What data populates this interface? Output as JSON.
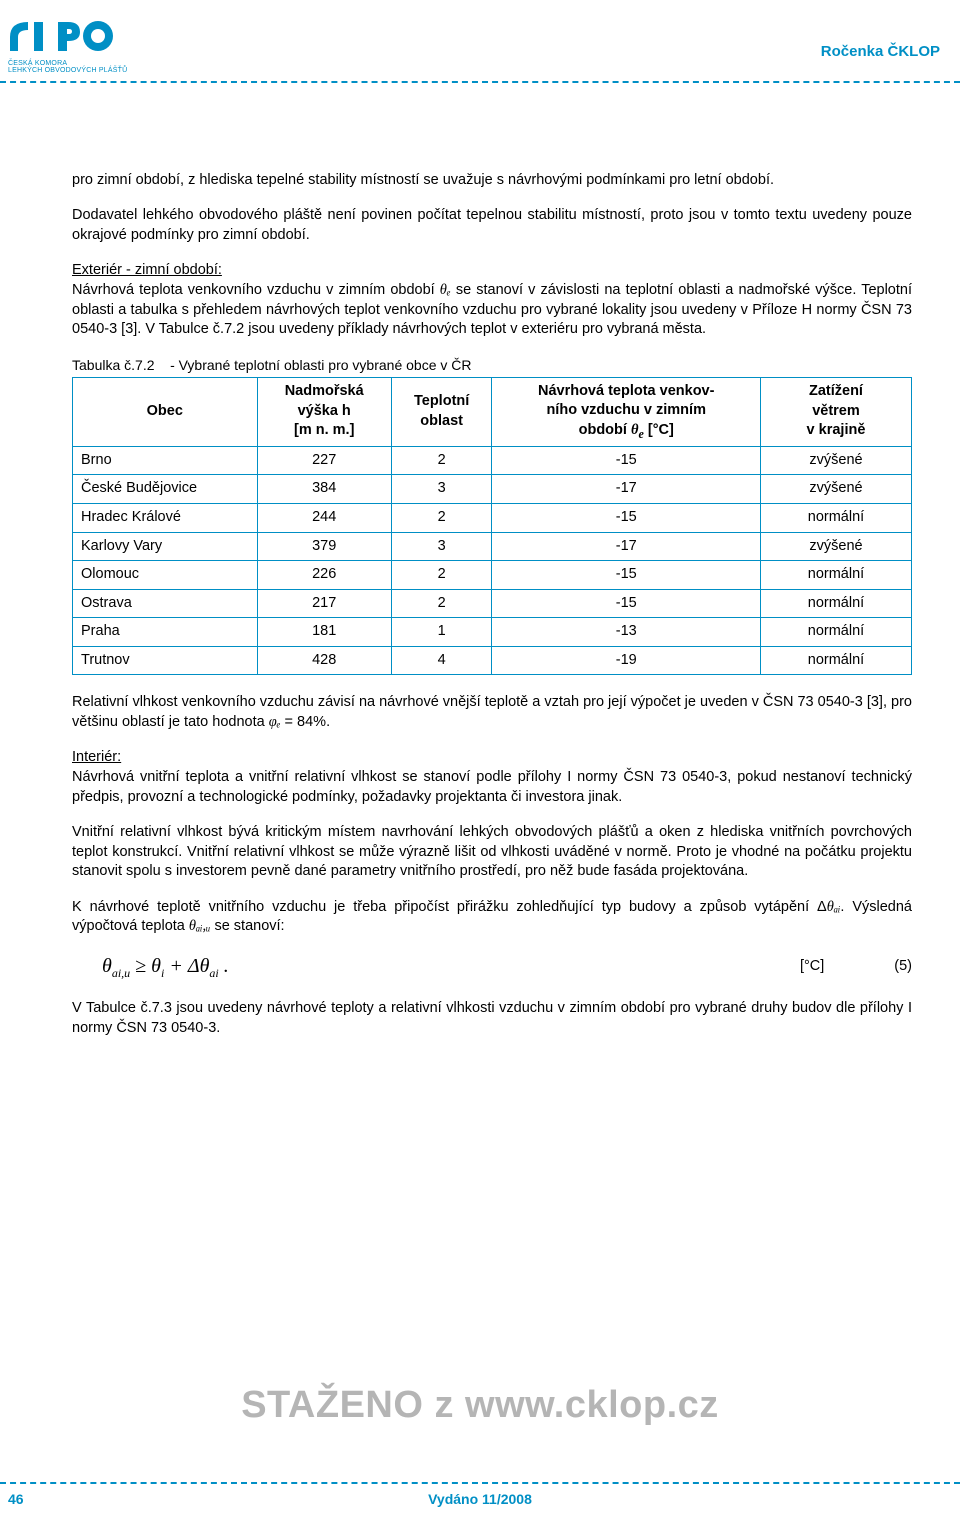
{
  "colors": {
    "brand": "#008fc5",
    "watermark": "#b5b5b5",
    "text": "#000000",
    "background": "#ffffff"
  },
  "header": {
    "logo_sub_line1": "ČESKÁ KOMORA",
    "logo_sub_line2": "LEHKÝCH OBVODOVÝCH PLÁŠŤŮ",
    "publication_title": "Ročenka ČKLOP"
  },
  "paragraphs": {
    "p1": "pro zimní období, z hlediska tepelné stability místností se uvažuje s návrhovými podmínkami pro letní období.",
    "p2": "Dodavatel lehkého obvodového pláště není povinen počítat tepelnou stabilitu místností, proto jsou v tomto textu uvedeny pouze okrajové podmínky pro zimní období.",
    "p3_heading": "Exteriér - zimní období:",
    "p3_body_a": "Návrhová teplota venkovního vzduchu v zimním období ",
    "p3_theta": "θₑ",
    "p3_body_b": " se stanoví v závislosti na teplotní oblasti a nadmořské výšce. Teplotní oblasti a tabulka s přehledem návrhových teplot venkovního vzduchu pro vybrané lokality jsou uvedeny v Příloze H normy ČSN 73 0540-3 [3]. V Tabulce č.7.2 jsou uvedeny příklady návrhových teplot v exteriéru pro vybraná města.",
    "p4_a": "Relativní vlhkost venkovního vzduchu závisí na návrhové vnější teplotě a vztah pro její výpočet je uveden v ČSN 73 0540-3 [3], pro většinu oblastí je tato hodnota ",
    "p4_phi": "φₑ",
    "p4_b": " = 84%.",
    "p5_heading": "Interiér:",
    "p5_body": "Návrhová vnitřní teplota a vnitřní relativní vlhkost se stanoví podle přílohy I normy ČSN 73 0540-3, pokud nestanoví technický předpis, provozní a technologické podmínky, požadavky projektanta či investora jinak.",
    "p6": "Vnitřní relativní vlhkost bývá kritickým místem navrhování lehkých obvodových plášťů a oken z hlediska vnitřních povrchových teplot konstrukcí. Vnitřní relativní vlhkost se může výrazně lišit od vlhkosti uváděné v normě. Proto je vhodné na počátku projektu stanovit spolu s investorem pevně dané parametry vnitřního prostředí, pro něž bude fasáda projektována.",
    "p7_a": "K návrhové teplotě vnitřního vzduchu je třeba připočíst přirážku zohledňující typ budovy a způsob vytápění Δ",
    "p7_theta": "θₐᵢ",
    "p7_b": ". Výsledná výpočtová teplota ",
    "p7_theta2": "θₐᵢ,ᵤ",
    "p7_c": " se stanoví:",
    "p8": "V Tabulce č.7.3 jsou uvedeny návrhové teploty a relativní vlhkosti vzduchu v zimním období pro vybrané druhy budov dle přílohy I normy ČSN 73 0540-3."
  },
  "table": {
    "caption_prefix": "Tabulka č.7.2",
    "caption_text": "- Vybrané teplotní oblasti pro vybrané obce v ČR",
    "columns": [
      "Obec",
      "Nadmořská výška h [m n. m.]",
      "Teplotní oblast",
      "Návrhová teplota venkovního vzduchu v zimním období θₑ [°C]",
      "Zatížení větrem v krajině"
    ],
    "col_widths": [
      "22%",
      "16%",
      "12%",
      "32%",
      "18%"
    ],
    "rows": [
      [
        "Brno",
        "227",
        "2",
        "-15",
        "zvýšené"
      ],
      [
        "České Budějovice",
        "384",
        "3",
        "-17",
        "zvýšené"
      ],
      [
        "Hradec Králové",
        "244",
        "2",
        "-15",
        "normální"
      ],
      [
        "Karlovy Vary",
        "379",
        "3",
        "-17",
        "zvýšené"
      ],
      [
        "Olomouc",
        "226",
        "2",
        "-15",
        "normální"
      ],
      [
        "Ostrava",
        "217",
        "2",
        "-15",
        "normální"
      ],
      [
        "Praha",
        "181",
        "1",
        "-13",
        "normální"
      ],
      [
        "Trutnov",
        "428",
        "4",
        "-19",
        "normální"
      ]
    ]
  },
  "formula": {
    "lhs": "θ",
    "lhs_sub": "ai,u",
    "rel": " ≥ ",
    "rhs1": "θ",
    "rhs1_sub": "i",
    "plus": " + Δ",
    "rhs2": "θ",
    "rhs2_sub": "ai",
    "tail": " .",
    "unit": "[°C]",
    "eqnum": "(5)"
  },
  "watermark": "STAŽENO z www.cklop.cz",
  "footer": {
    "page_number": "46",
    "issued": "Vydáno 11/2008"
  }
}
